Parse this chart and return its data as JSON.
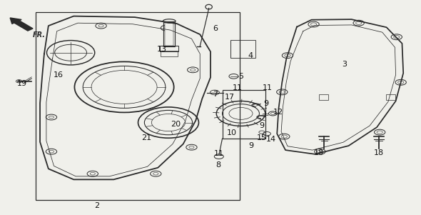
{
  "bg_color": "#f0f0eb",
  "line_color": "#2a2a2a",
  "parts": {
    "part2_label": {
      "text": "2"
    },
    "part3_label": {
      "text": "3"
    },
    "part4_label": {
      "text": "4"
    },
    "part5_label": {
      "text": "5"
    },
    "part6_label": {
      "text": "6"
    },
    "part7_label": {
      "text": "7"
    },
    "part8_label": {
      "text": "8"
    },
    "part9a_label": {
      "text": "9"
    },
    "part9b_label": {
      "text": "9"
    },
    "part9c_label": {
      "text": "9"
    },
    "part10_label": {
      "text": "10"
    },
    "part11a_label": {
      "text": "11"
    },
    "part11b_label": {
      "text": "11"
    },
    "part11c_label": {
      "text": "11"
    },
    "part12_label": {
      "text": "12"
    },
    "part13_label": {
      "text": "13"
    },
    "part14_label": {
      "text": "14"
    },
    "part15_label": {
      "text": "15"
    },
    "part16_label": {
      "text": "16"
    },
    "part17_label": {
      "text": "17"
    },
    "part18a_label": {
      "text": "18"
    },
    "part18b_label": {
      "text": "18"
    },
    "part19_label": {
      "text": "19"
    },
    "part20_label": {
      "text": "20"
    },
    "part21_label": {
      "text": "21"
    }
  },
  "font_size": 8.0,
  "label_color": "#111111"
}
